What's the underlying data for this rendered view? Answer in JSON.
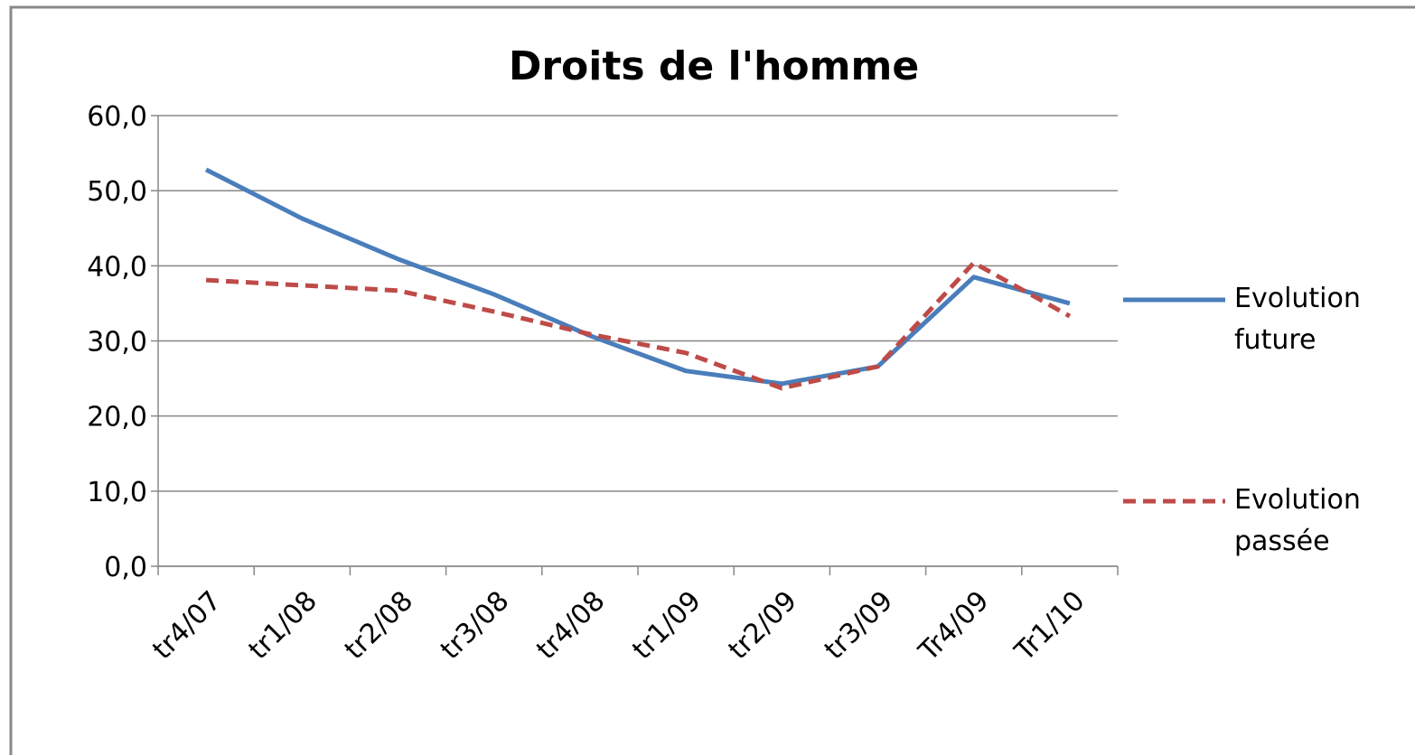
{
  "chart_data": {
    "type": "line",
    "title": "Droits de l'homme",
    "categories": [
      "tr4/07",
      "tr1/08",
      "tr2/08",
      "tr3/08",
      "tr4/08",
      "tr1/09",
      "tr2/09",
      "tr3/09",
      "Tr4/09",
      "Tr1/10"
    ],
    "series": [
      {
        "name": "Evolution future",
        "color": "#4a7ebb",
        "dash": false,
        "values": [
          52.8,
          46.3,
          40.9,
          36.2,
          30.7,
          26.0,
          24.3,
          26.6,
          38.5,
          35.0
        ]
      },
      {
        "name": "Evolution passée",
        "color": "#be4b48",
        "dash": true,
        "values": [
          38.1,
          37.4,
          36.7,
          33.9,
          30.9,
          28.4,
          23.7,
          26.6,
          40.4,
          33.3
        ]
      }
    ],
    "ylim": [
      0,
      60
    ],
    "yticks": [
      {
        "value": 0,
        "label": "0,0"
      },
      {
        "value": 10,
        "label": "10,0"
      },
      {
        "value": 20,
        "label": "20,0"
      },
      {
        "value": 30,
        "label": "30,0"
      },
      {
        "value": 40,
        "label": "40,0"
      },
      {
        "value": 50,
        "label": "50,0"
      },
      {
        "value": 60,
        "label": "60,0"
      }
    ],
    "grid": true
  }
}
